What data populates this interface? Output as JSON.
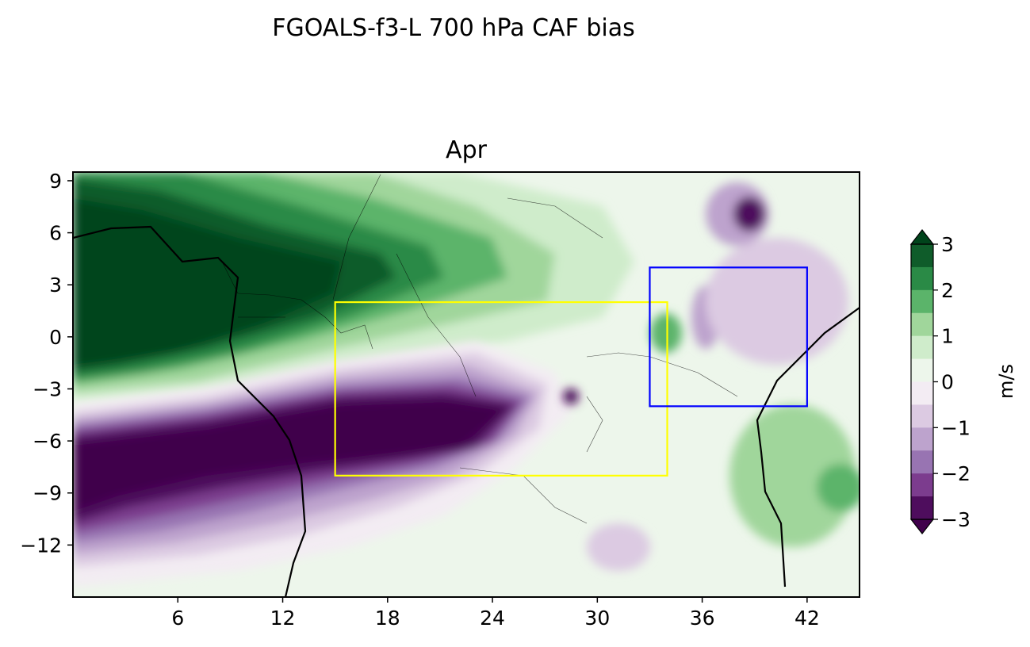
{
  "figure": {
    "suptitle": "FGOALS-f3-L 700 hPa CAF bias",
    "panel_title": "Apr"
  },
  "map": {
    "lon_range": [
      0,
      45
    ],
    "lat_range": [
      -15,
      9.5
    ],
    "x_ticks": [
      6,
      12,
      18,
      24,
      30,
      36,
      42
    ],
    "x_tick_labels": [
      "6",
      "12",
      "18",
      "24",
      "30",
      "36",
      "42"
    ],
    "y_ticks": [
      9,
      6,
      3,
      0,
      -3,
      -6,
      -9,
      -12
    ],
    "y_tick_labels": [
      "9",
      "6",
      "3",
      "0",
      "−3",
      "−6",
      "−9",
      "−12"
    ],
    "boxes": [
      {
        "name": "yellow-region-box",
        "color": "#ffff00",
        "lon": [
          15,
          34
        ],
        "lat": [
          -8,
          2
        ]
      },
      {
        "name": "blue-region-box",
        "color": "#0000ff",
        "lon": [
          33,
          42
        ],
        "lat": [
          -4,
          4
        ]
      }
    ],
    "field_description_colors": {
      "strong_positive": "#00441b",
      "strong_negative": "#40004b"
    }
  },
  "colorbar": {
    "label": "m/s",
    "ticks": [
      3,
      2,
      1,
      0,
      -1,
      -2,
      -3
    ],
    "tick_labels": [
      "3",
      "2",
      "1",
      "0",
      "−1",
      "−2",
      "−3"
    ],
    "levels_colors_top_to_bottom": [
      "#00441b",
      "#0f5c2a",
      "#2a8a46",
      "#5bb46a",
      "#a0d69b",
      "#cfeccb",
      "#edf6eb",
      "#f3ecf3",
      "#dccae2",
      "#bda3cd",
      "#9874b2",
      "#7c3c8e",
      "#4e0d5d",
      "#40004b"
    ],
    "extend": "both"
  }
}
